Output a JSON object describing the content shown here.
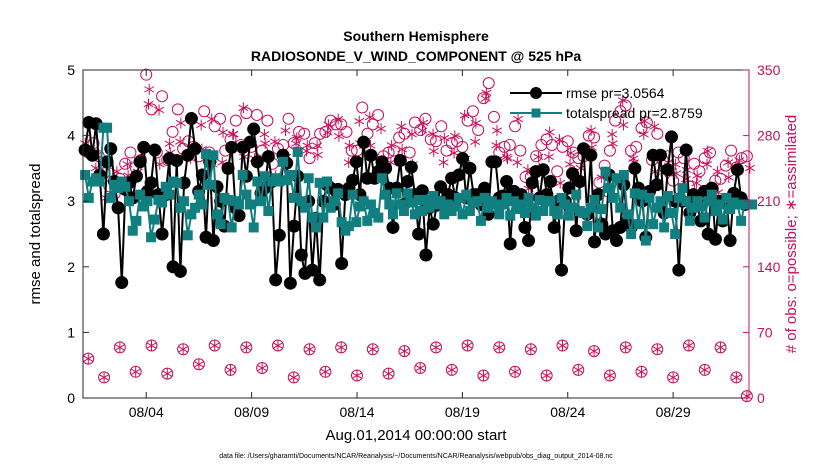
{
  "chart_data": {
    "type": "line",
    "title": "Southern Hemisphere",
    "subtitle": "RADIOSONDE_V_WIND_COMPONENT @ 525 hPa",
    "xlabel": "Aug.01,2014 00:00:00 start",
    "ylabel": "rmse and totalspread",
    "ylabel_right": "# of obs: o=possible; ∗=assimilated",
    "footnote": "data file: /Users/gharamti/Documents/NCAR/Reanalysis/~/Documents/NCAR/Reanalysis/webpub/obs_diag_output_2014-08.nc",
    "xlim": [
      1,
      32.6
    ],
    "ylim": [
      0,
      5
    ],
    "ylim_right": [
      0,
      350
    ],
    "x_ticks": [
      4,
      9,
      14,
      19,
      24,
      29
    ],
    "x_tick_labels": [
      "08/04",
      "08/09",
      "08/14",
      "08/19",
      "08/24",
      "08/29"
    ],
    "y_ticks": [
      0,
      1,
      2,
      3,
      4,
      5
    ],
    "y_tick_labels": [
      "0",
      "1",
      "2",
      "3",
      "4",
      "5"
    ],
    "y_ticks_right": [
      0,
      70,
      140,
      210,
      280,
      350
    ],
    "y_tick_labels_right": [
      "0",
      "70",
      "140",
      "210",
      "280",
      "350"
    ],
    "colors": {
      "rmse": "#000000",
      "spread": "#117f7f",
      "obs": "#c8105a"
    },
    "series": [
      {
        "name": "rmse pr=3.0564",
        "key": "rmse",
        "values": [
          3.78,
          4.2,
          3.7,
          4.18,
          3.4,
          2.5,
          3.6,
          3.8,
          3.3,
          2.9,
          1.76,
          3.18,
          3.28,
          3.05,
          3.38,
          3.6,
          3.82,
          3.15,
          3.28,
          3.78,
          3.1,
          2.5,
          3.1,
          3.65,
          2.0,
          3.62,
          1.93,
          3.28,
          3.7,
          4.26,
          3.8,
          3.15,
          3.4,
          2.45,
          3.6,
          2.4,
          3.22,
          3.0,
          2.62,
          3.5,
          3.82,
          2.9,
          2.78,
          3.82,
          3.38,
          3.9,
          4.1,
          3.6,
          3.12,
          3.2,
          3.68,
          3.3,
          1.8,
          2.48,
          3.7,
          3.58,
          1.75,
          2.62,
          3.38,
          2.18,
          1.9,
          3.0,
          1.95,
          2.74,
          1.8,
          3.0,
          3.25,
          3.2,
          2.95,
          3.18,
          2.05,
          3.1,
          3.2,
          3.32,
          3.6,
          3.1,
          3.9,
          3.35,
          3.7,
          3.35,
          3.45,
          3.6,
          3.5,
          3.2,
          2.6,
          3.2,
          3.62,
          2.95,
          3.3,
          3.52,
          3.1,
          2.5,
          3.16,
          2.18,
          2.9,
          2.65,
          2.94,
          3.22,
          3.0,
          3.1,
          3.35,
          3.05,
          3.4,
          3.65,
          3.05,
          3.5,
          3.1,
          3.1,
          2.95,
          3.2,
          2.8,
          3.6,
          3.6,
          3.05,
          3.08,
          3.3,
          2.35,
          3.15,
          3.0,
          3.1,
          2.6,
          2.4,
          3.28,
          3.45,
          3.05,
          3.48,
          3.1,
          3.3,
          2.6,
          3.0,
          1.95,
          3.0,
          3.2,
          3.42,
          2.55,
          3.3,
          3.8,
          2.8,
          3.7,
          2.38,
          3.1,
          2.65,
          2.5,
          3.4,
          2.55,
          2.4,
          2.6,
          3.25,
          2.7,
          2.6,
          3.5,
          3.2,
          3.0,
          2.45,
          3.15,
          3.7,
          3.25,
          3.7,
          2.82,
          3.48,
          3.98,
          3.0,
          1.95,
          3.0,
          3.78,
          2.82,
          3.1,
          2.95,
          2.7,
          3.15,
          2.5,
          3.2,
          2.42,
          3.0,
          2.7,
          3.0,
          2.4,
          3.12,
          3.48,
          3.05,
          2.95
        ],
        "marker": "circle"
      },
      {
        "name": "totalspread pr=2.8759",
        "key": "spread",
        "values": [
          3.4,
          3.05,
          3.3,
          3.35,
          3.3,
          4.12,
          4.12,
          3.05,
          3.25,
          3.2,
          3.3,
          3.22,
          3.0,
          2.55,
          2.7,
          3.1,
          2.92,
          3.0,
          2.45,
          2.72,
          3.02,
          2.98,
          3.22,
          3.1,
          3.3,
          3.28,
          2.9,
          3.0,
          2.48,
          2.8,
          2.9,
          3.1,
          2.95,
          3.72,
          3.25,
          3.7,
          2.8,
          2.65,
          3.05,
          3.02,
          2.6,
          3.0,
          2.95,
          3.4,
          3.1,
          2.95,
          2.6,
          3.3,
          3.0,
          3.38,
          2.85,
          3.3,
          3.35,
          3.3,
          3.6,
          3.32,
          3.4,
          3.05,
          3.75,
          3.0,
          2.9,
          3.35,
          2.75,
          2.6,
          3.28,
          2.75,
          3.3,
          2.9,
          3.0,
          3.12,
          2.68,
          2.55,
          2.62,
          3.1,
          2.68,
          2.92,
          3.0,
          2.7,
          2.95,
          2.82,
          2.75,
          3.35,
          3.1,
          2.95,
          2.8,
          3.12,
          2.95,
          2.85,
          3.12,
          2.98,
          2.8,
          3.02,
          2.85,
          3.02,
          2.9,
          3.08,
          2.95,
          3.0,
          2.8,
          2.95,
          2.85,
          2.92,
          3.05,
          2.8,
          3.1,
          2.85,
          2.98,
          3.0,
          2.7,
          3.05,
          2.9,
          3.0,
          2.95,
          2.8,
          2.95,
          3.05,
          2.78,
          3.0,
          2.88,
          2.95,
          2.82,
          3.05,
          2.9,
          2.78,
          3.02,
          2.85,
          3.0,
          3.0,
          2.85,
          2.8,
          3.05,
          2.95,
          2.78,
          2.9,
          3.1,
          2.85,
          2.82,
          2.62,
          2.9,
          3.02,
          2.6,
          2.88,
          3.45,
          3.2,
          3.05,
          3.35,
          2.9,
          3.4,
          2.8,
          2.5,
          3.12,
          2.65,
          3.1,
          2.4,
          3.05,
          2.65,
          2.9,
          3.0,
          2.6,
          3.08,
          2.82,
          2.5,
          3.05,
          3.2,
          3.0,
          2.7,
          2.9,
          3.0,
          2.92,
          2.75,
          3.0,
          3.1,
          2.85,
          2.95,
          2.72,
          3.05,
          2.88,
          2.98,
          2.95,
          2.7,
          2.95,
          2.95,
          2.95
        ],
        "marker": "square"
      }
    ],
    "obs_possible_x": [
      1.25,
      1.5,
      1.75,
      2.0,
      2.25,
      2.5,
      2.75,
      3.0,
      3.25,
      3.5,
      3.75,
      4.0,
      4.25,
      4.5,
      4.75,
      5.0,
      5.25,
      5.5,
      5.75,
      6.0,
      6.25,
      6.5,
      6.75,
      7.0,
      7.25,
      7.5,
      7.75,
      8.0,
      8.25,
      8.5,
      8.75,
      9.0,
      9.25,
      9.5,
      9.75,
      10.0,
      10.25,
      10.5,
      10.75,
      11.0,
      11.25,
      11.5,
      11.75,
      12.0,
      12.25,
      12.5,
      12.75,
      13.0,
      13.25,
      13.5,
      13.75,
      14.0,
      14.25,
      14.5,
      14.75,
      15.0,
      15.25,
      15.5,
      15.75,
      16.0,
      16.25,
      16.5,
      16.75,
      17.0,
      17.25,
      17.5,
      17.75,
      18.0,
      18.25,
      18.5,
      18.75,
      19.0,
      19.25,
      19.5,
      19.75,
      20.0,
      20.25,
      20.5,
      20.75,
      21.0,
      21.25,
      21.5,
      21.75,
      22.0,
      22.25,
      22.5,
      22.75,
      23.0,
      23.25,
      23.5,
      23.75,
      24.0,
      24.25,
      24.5,
      24.75,
      25.0,
      25.25,
      25.5,
      25.75,
      26.0,
      26.25,
      26.5,
      26.75,
      27.0,
      27.25,
      27.5,
      27.75,
      28.0,
      28.25,
      28.5,
      28.75,
      29.0,
      29.25,
      29.5,
      29.75,
      30.0,
      30.25,
      30.5,
      30.75,
      31.0,
      31.25,
      31.5,
      31.75,
      32.0,
      32.25,
      32.5
    ],
    "obs_possible_values": [
      262,
      272,
      258,
      240,
      226,
      218,
      234,
      250,
      262,
      246,
      254,
      345,
      308,
      262,
      322,
      254,
      284,
      308,
      266,
      274,
      268,
      258,
      306,
      262,
      290,
      298,
      264,
      276,
      296,
      270,
      304,
      268,
      302,
      264,
      296,
      250,
      266,
      270,
      298,
      272,
      284,
      282,
      256,
      272,
      282,
      284,
      296,
      292,
      292,
      284,
      264,
      264,
      310,
      282,
      292,
      302,
      258,
      262,
      264,
      278,
      282,
      262,
      294,
      286,
      298,
      276,
      274,
      290,
      264,
      272,
      274,
      268,
      296,
      306,
      286,
      320,
      336,
      300,
      262,
      268,
      270,
      290,
      264,
      236,
      236,
      258,
      270,
      276,
      270,
      242,
      268,
      274,
      262,
      256,
      258,
      280,
      278,
      230,
      248,
      264,
      296,
      306,
      312,
      264,
      268,
      288,
      294,
      254,
      282,
      254,
      258,
      232,
      262,
      256,
      226,
      250,
      242,
      256,
      262,
      232,
      234,
      248,
      264,
      246,
      256,
      258,
      278,
      258,
      292,
      278,
      248,
      226,
      262
    ],
    "obs_assimilated_values": [
      262,
      270,
      256,
      238,
      224,
      216,
      232,
      248,
      260,
      244,
      252,
      340,
      304,
      260,
      318,
      252,
      282,
      304,
      264,
      272,
      266,
      256,
      302,
      260,
      288,
      294,
      262,
      272,
      292,
      268,
      300,
      266,
      298,
      262,
      292,
      248,
      264,
      268,
      296,
      268,
      282,
      280,
      254,
      270,
      280,
      282,
      294,
      290,
      288,
      280,
      262,
      262,
      306,
      280,
      290,
      298,
      256,
      260,
      262,
      276,
      280,
      260,
      292,
      284,
      296,
      274,
      272,
      288,
      262,
      270,
      272,
      266,
      292,
      304,
      284,
      316,
      330,
      296,
      260,
      266,
      268,
      288,
      262,
      234,
      234,
      256,
      268,
      274,
      268,
      240,
      266,
      272,
      260,
      254,
      256,
      278,
      276,
      228,
      246,
      262,
      292,
      302,
      308,
      262,
      266,
      286,
      292,
      252,
      280,
      252,
      256,
      230,
      260,
      254,
      224,
      248,
      240,
      254,
      260,
      230,
      232,
      246,
      262,
      244,
      254,
      256,
      276,
      256,
      290,
      276,
      246,
      224,
      260
    ],
    "low_obs_x": [
      1.25,
      2.0,
      2.75,
      3.5,
      4.25,
      5.0,
      5.75,
      6.5,
      7.25,
      8.0,
      8.75,
      9.5,
      10.25,
      11.0,
      11.75,
      12.5,
      13.25,
      14.0,
      14.75,
      15.5,
      16.25,
      17.0,
      17.75,
      18.5,
      19.25,
      20.0,
      20.75,
      21.5,
      22.25,
      23.0,
      23.75,
      24.5,
      25.25,
      26.0,
      26.75,
      27.5,
      28.25,
      29.0,
      29.75,
      30.5,
      31.25,
      32.0,
      32.5
    ],
    "low_obs_values": [
      42,
      22,
      54,
      28,
      56,
      26,
      52,
      36,
      56,
      30,
      54,
      32,
      56,
      22,
      52,
      28,
      54,
      24,
      52,
      26,
      50,
      32,
      54,
      30,
      56,
      24,
      54,
      28,
      52,
      24,
      56,
      30,
      50,
      24,
      54,
      28,
      52,
      22,
      56,
      30,
      54,
      22,
      2
    ]
  }
}
